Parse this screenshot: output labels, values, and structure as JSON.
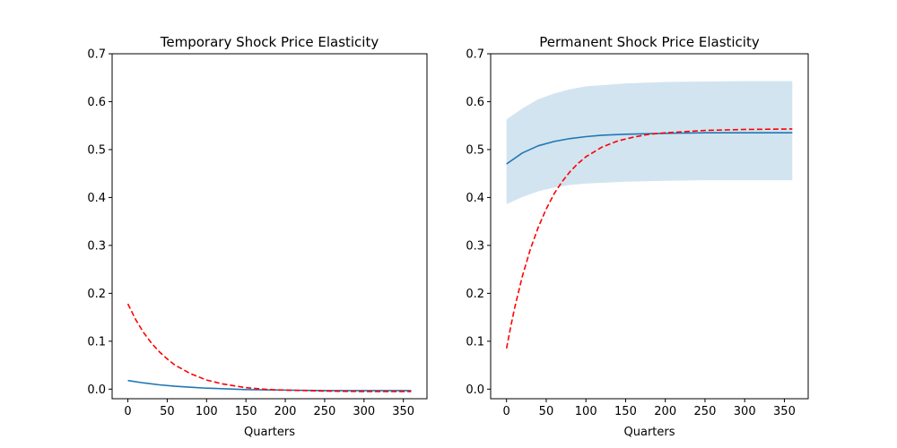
{
  "chart_data": [
    {
      "type": "line",
      "title": "Temporary Shock Price Elasticity",
      "xlabel": "Quarters",
      "ylabel": "",
      "xlim": [
        -20,
        380
      ],
      "ylim": [
        -0.02,
        0.7
      ],
      "xticks": [
        "0",
        "50",
        "100",
        "150",
        "200",
        "250",
        "300",
        "350"
      ],
      "yticks": [
        "0.0",
        "0.1",
        "0.2",
        "0.3",
        "0.4",
        "0.5",
        "0.6",
        "0.7"
      ],
      "series": [
        {
          "style": "solid",
          "color": "#1f77b4",
          "x": [
            0,
            20,
            40,
            60,
            80,
            100,
            120,
            150,
            200,
            250,
            300,
            360
          ],
          "y": [
            0.018,
            0.013,
            0.009,
            0.006,
            0.004,
            0.002,
            0.001,
            -0.001,
            -0.002,
            -0.003,
            -0.003,
            -0.003
          ]
        },
        {
          "style": "dashed",
          "color": "#ff0000",
          "x": [
            0,
            10,
            20,
            30,
            40,
            50,
            60,
            80,
            100,
            120,
            150,
            180,
            200,
            250,
            300,
            360
          ],
          "y": [
            0.178,
            0.145,
            0.118,
            0.096,
            0.078,
            0.063,
            0.05,
            0.032,
            0.019,
            0.011,
            0.003,
            -0.001,
            -0.002,
            -0.004,
            -0.005,
            -0.005
          ]
        }
      ]
    },
    {
      "type": "line",
      "title": "Permanent Shock Price Elasticity",
      "xlabel": "Quarters",
      "ylabel": "",
      "xlim": [
        -20,
        380
      ],
      "ylim": [
        -0.02,
        0.7
      ],
      "xticks": [
        "0",
        "50",
        "100",
        "150",
        "200",
        "250",
        "300",
        "350"
      ],
      "yticks": [
        "0.0",
        "0.1",
        "0.2",
        "0.3",
        "0.4",
        "0.5",
        "0.6",
        "0.7"
      ],
      "band": {
        "color": "#1f77b4",
        "opacity": 0.2,
        "x": [
          0,
          20,
          40,
          60,
          80,
          100,
          150,
          200,
          250,
          300,
          360
        ],
        "upper": [
          0.563,
          0.586,
          0.605,
          0.617,
          0.626,
          0.632,
          0.638,
          0.641,
          0.642,
          0.643,
          0.643
        ],
        "lower": [
          0.386,
          0.401,
          0.413,
          0.421,
          0.426,
          0.429,
          0.433,
          0.435,
          0.436,
          0.436,
          0.436
        ]
      },
      "series": [
        {
          "style": "solid",
          "color": "#1f77b4",
          "x": [
            0,
            20,
            40,
            60,
            80,
            100,
            120,
            150,
            200,
            250,
            300,
            360
          ],
          "y": [
            0.47,
            0.493,
            0.508,
            0.517,
            0.523,
            0.527,
            0.53,
            0.532,
            0.534,
            0.535,
            0.535,
            0.535
          ]
        },
        {
          "style": "dashed",
          "color": "#ff0000",
          "x": [
            0,
            5,
            10,
            20,
            30,
            40,
            50,
            60,
            70,
            80,
            90,
            100,
            120,
            140,
            160,
            180,
            200,
            250,
            300,
            360
          ],
          "y": [
            0.085,
            0.128,
            0.168,
            0.236,
            0.292,
            0.338,
            0.376,
            0.408,
            0.433,
            0.454,
            0.471,
            0.485,
            0.505,
            0.518,
            0.526,
            0.532,
            0.535,
            0.54,
            0.542,
            0.543
          ]
        }
      ]
    }
  ]
}
